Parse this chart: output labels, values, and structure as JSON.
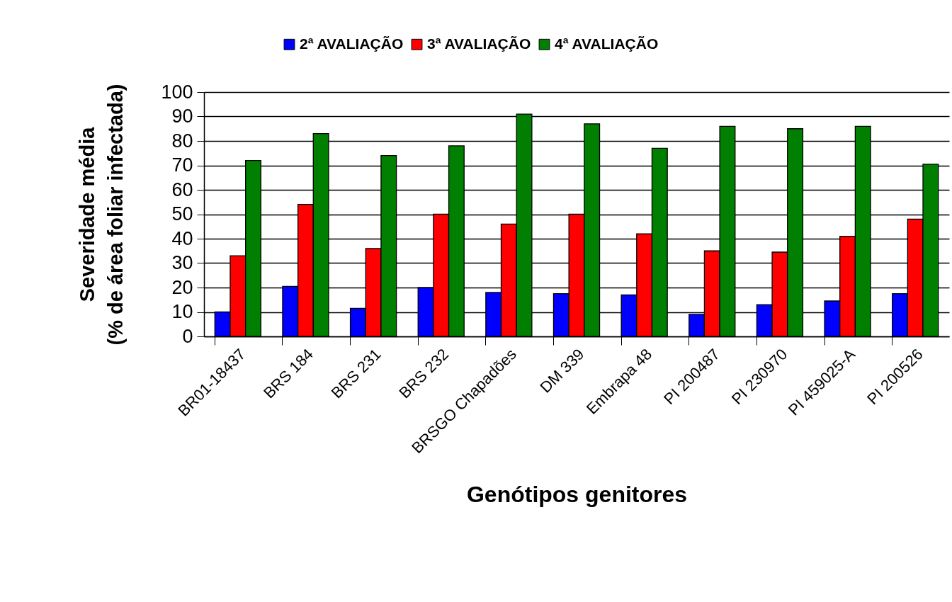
{
  "chart_data": {
    "type": "bar",
    "xlabel": "Genótipos genitores",
    "ylabel": "Severidade média\n(% de área foliar infectada)",
    "categories": [
      "BR01-18437",
      "BRS 184",
      "BRS 231",
      "BRS 232",
      "BRSGO Chapadões",
      "DM 339",
      "Embrapa 48",
      "PI 200487",
      "PI 230970",
      "PI 459025-A",
      "PI 200526"
    ],
    "series": [
      {
        "name": "2ª AVALIAÇÃO",
        "color": "#0000ff",
        "values": [
          10,
          20.5,
          11.5,
          20,
          18,
          17.5,
          17,
          9,
          13,
          14.5,
          17.5
        ]
      },
      {
        "name": "3ª AVALIAÇÃO",
        "color": "#ff0000",
        "values": [
          33,
          54,
          36,
          50,
          46,
          50,
          42,
          35,
          34.5,
          41,
          48
        ]
      },
      {
        "name": "4ª AVALIAÇÃO",
        "color": "#007f00",
        "values": [
          72,
          83,
          74,
          78,
          91,
          87,
          77,
          86,
          85,
          86,
          70.5
        ]
      }
    ],
    "ylim": [
      0,
      100
    ],
    "yticks": [
      0,
      10,
      20,
      30,
      40,
      50,
      60,
      70,
      80,
      90,
      100
    ],
    "grid": "y",
    "legend": "top"
  }
}
